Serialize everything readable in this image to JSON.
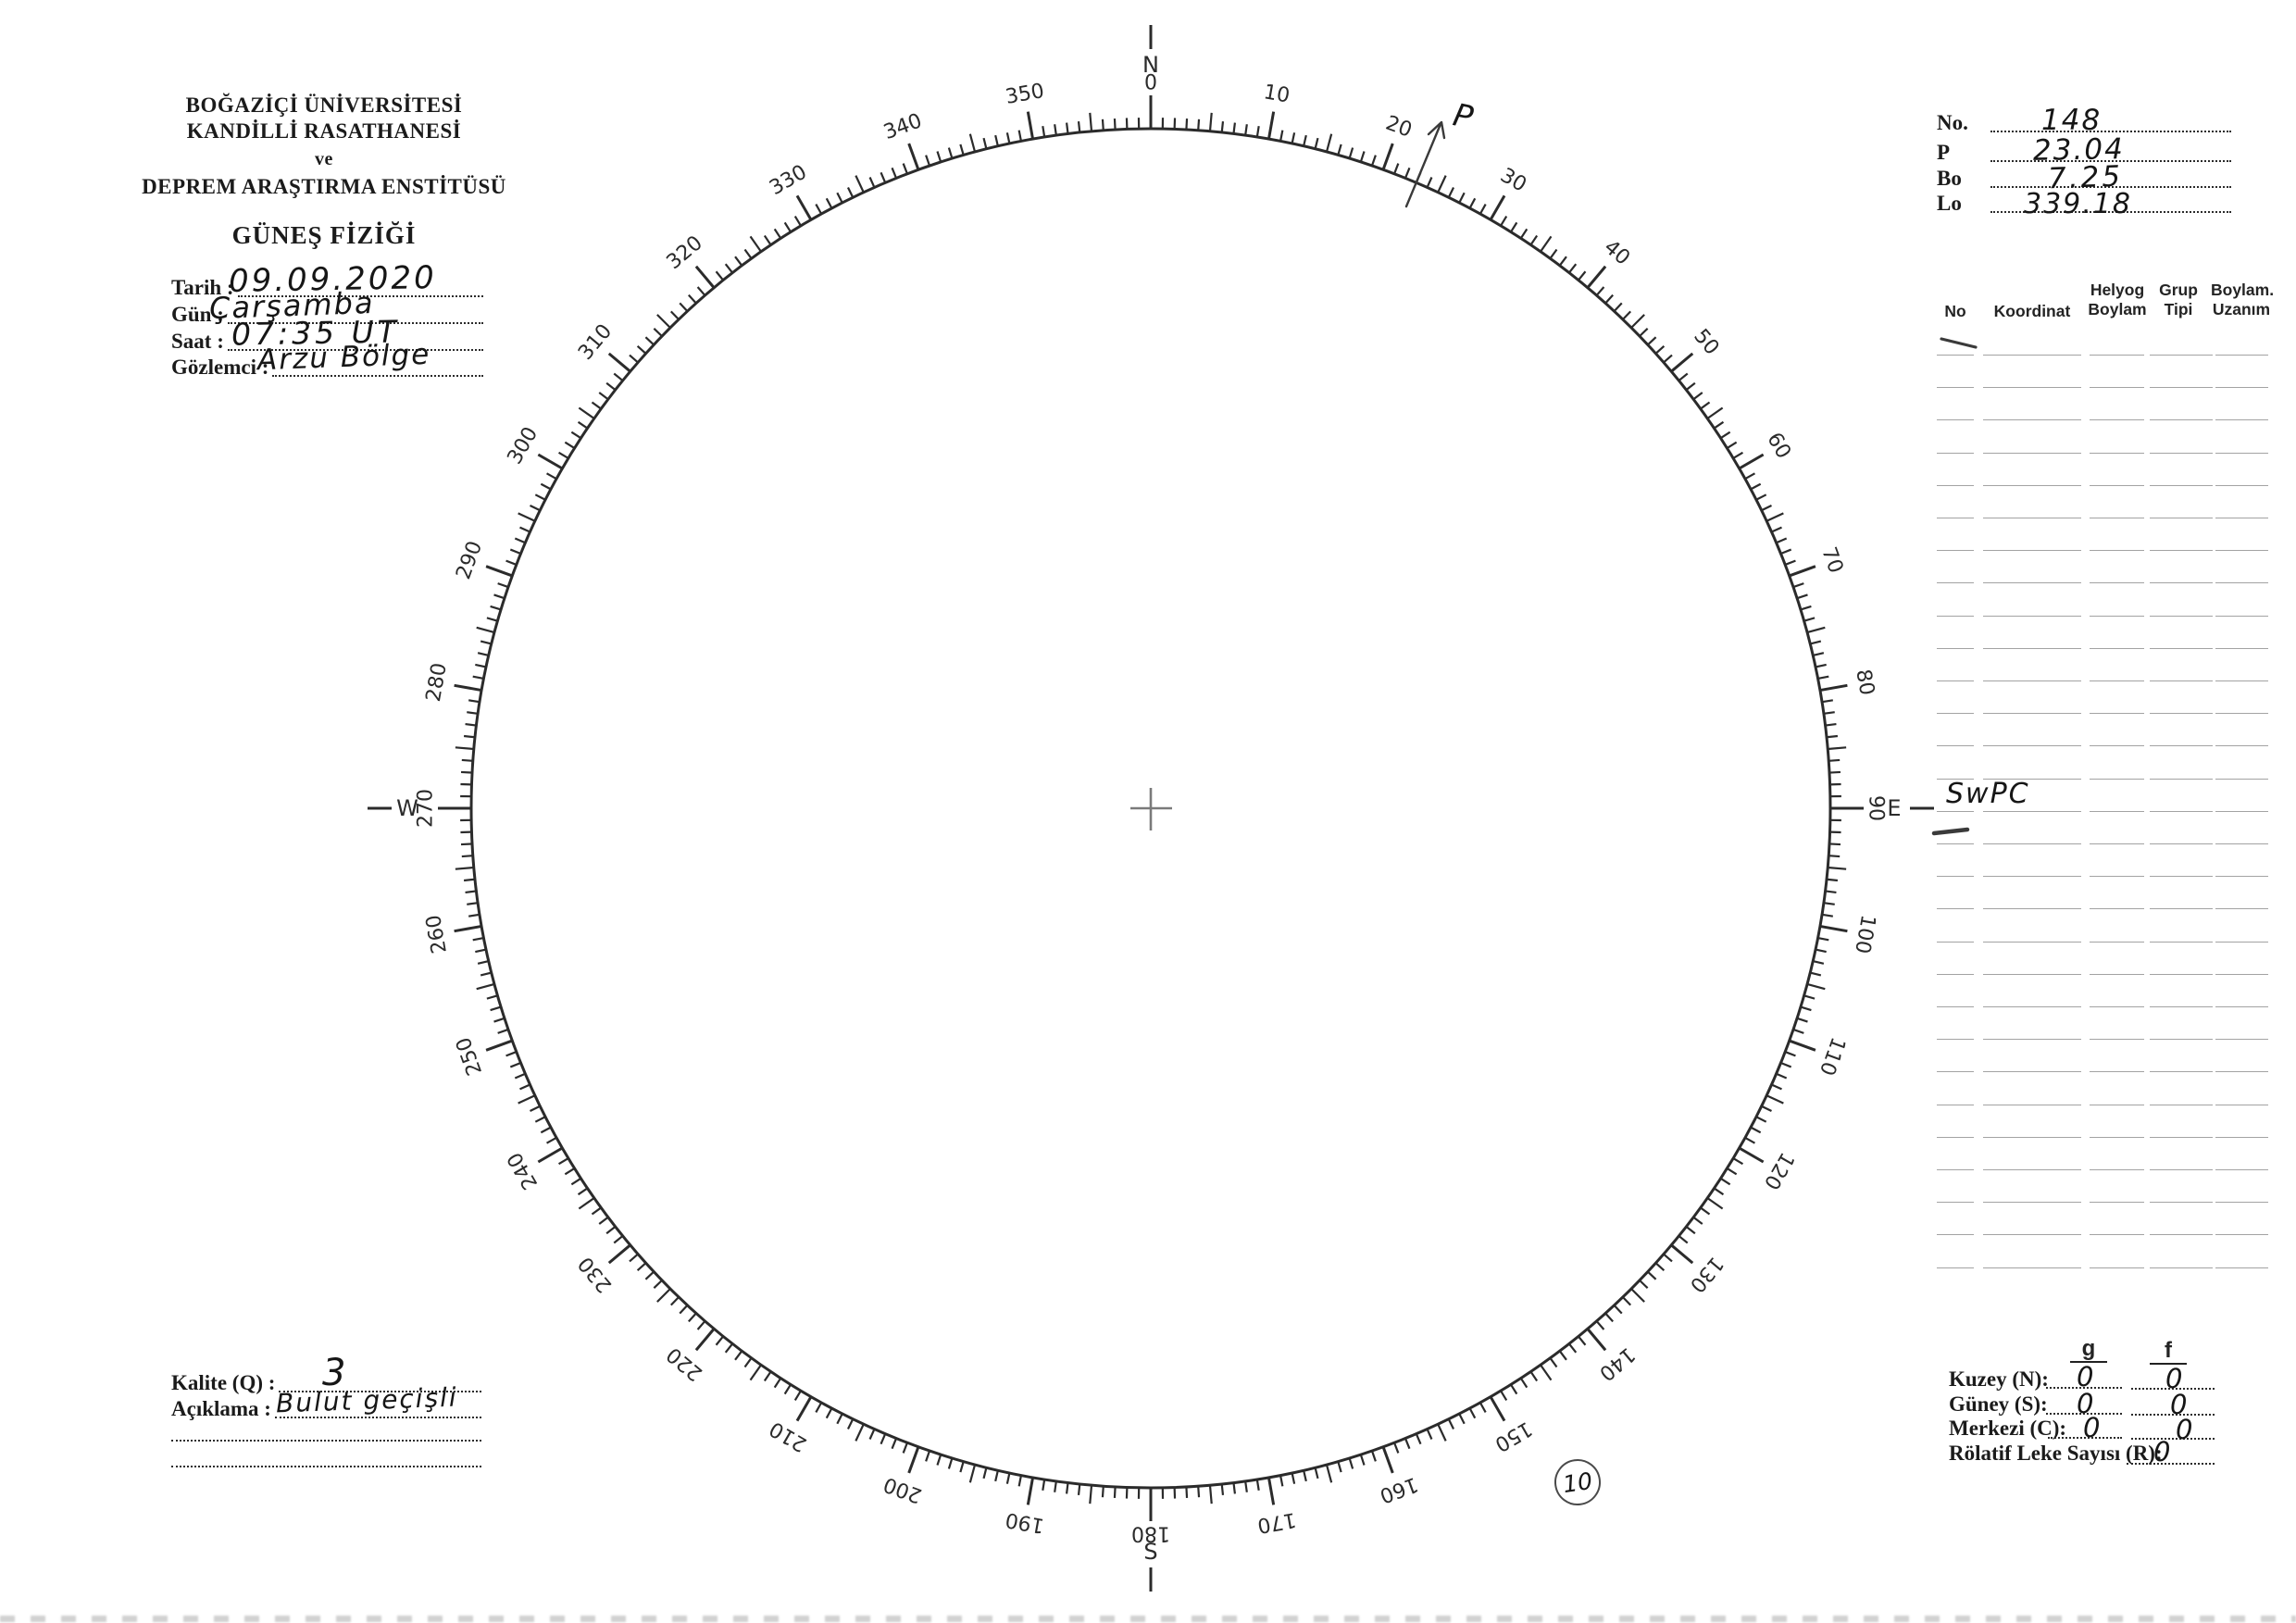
{
  "header": {
    "line1": "BOĞAZİÇİ ÜNİVERSİTESİ",
    "line2": "KANDİLLİ RASATHANESİ",
    "line3": "ve",
    "line4": "DEPREM ARAŞTIRMA ENSTİTÜSÜ",
    "title": "GÜNEŞ FİZİĞİ"
  },
  "obs": {
    "rows": [
      {
        "label": "Tarih :",
        "value": "09.09.2020"
      },
      {
        "label": "Gün :",
        "value": "Çarşamba"
      },
      {
        "label": "Saat :",
        "value": "07:35 UT"
      },
      {
        "label": "Gözlemci :",
        "value": "Arzu Bölge"
      }
    ]
  },
  "eph": {
    "rows": [
      {
        "label": "No.",
        "value": "148"
      },
      {
        "label": "P",
        "value": "23.04"
      },
      {
        "label": "Bo",
        "value": "7.25"
      },
      {
        "label": "Lo",
        "value": "339.18"
      }
    ]
  },
  "gtable": {
    "h_no": "No",
    "h_koordinat": "Koordinat",
    "h_helyog1": "Helyog",
    "h_helyog2": "Boylam",
    "h_grup1": "Grup",
    "h_grup2": "Tipi",
    "h_boylam1": "Boylam.",
    "h_boylam2": "Uzanım",
    "row_count": 29
  },
  "dial": {
    "labels": [
      "0",
      "10",
      "20",
      "30",
      "40",
      "50",
      "60",
      "70",
      "80",
      "90",
      "100",
      "110",
      "120",
      "130",
      "140",
      "150",
      "160",
      "170",
      "180",
      "190",
      "200",
      "210",
      "220",
      "230",
      "240",
      "250",
      "260",
      "270",
      "280",
      "290",
      "300",
      "310",
      "320",
      "330",
      "340",
      "350"
    ],
    "cardinals": {
      "n": "N",
      "e": "E",
      "s": "S",
      "w": "W"
    }
  },
  "ann": {
    "p_mark": "P",
    "swpc": "SwPC",
    "circled": "10"
  },
  "quality": {
    "kalite_label": "Kalite (Q) :",
    "kalite_value": "3",
    "aciklama_label": "Açıklama :",
    "aciklama_value": "Bulut geçişli"
  },
  "counts": {
    "col_g": "g",
    "col_f": "f",
    "rows": [
      {
        "label": "Kuzey (N):",
        "g": "0",
        "f": "0"
      },
      {
        "label": "Güney (S):",
        "g": "0",
        "f": "0"
      },
      {
        "label": "Merkezi (C):",
        "g": "0",
        "f": "0"
      },
      {
        "label": "Rölatif Leke Sayısı (R):",
        "r": "0"
      }
    ]
  }
}
